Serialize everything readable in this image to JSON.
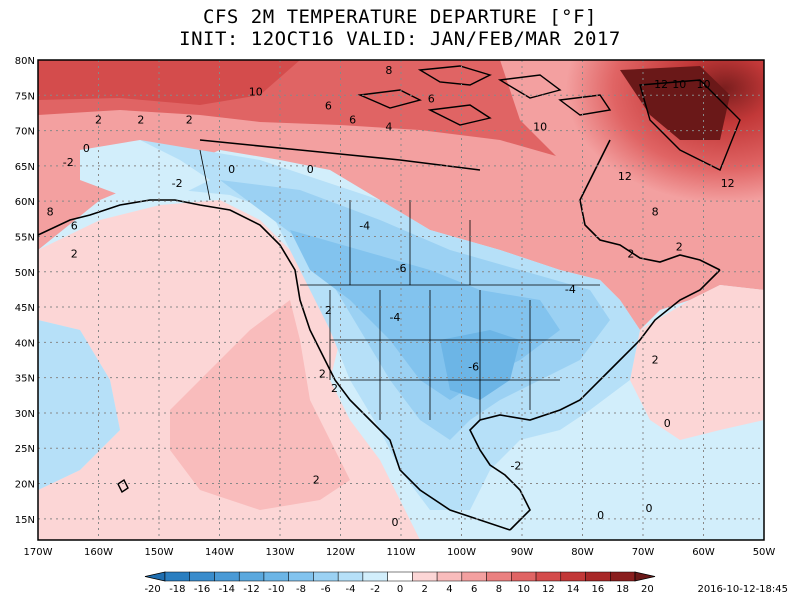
{
  "title": {
    "line1": "CFS 2M TEMPERATURE DEPARTURE [°F]",
    "line2": "INIT: 12OCT16 VALID: JAN/FEB/MAR 2017"
  },
  "timestamp": "2016-10-12-18:45",
  "lat_labels": [
    "80N",
    "75N",
    "70N",
    "65N",
    "60N",
    "55N",
    "50N",
    "45N",
    "40N",
    "35N",
    "30N",
    "25N",
    "20N",
    "15N"
  ],
  "lon_labels": [
    "170W",
    "160W",
    "150W",
    "140W",
    "130W",
    "120W",
    "110W",
    "100W",
    "90W",
    "80W",
    "70W",
    "60W",
    "50W"
  ],
  "colorbar": {
    "labels": [
      "-20",
      "-18",
      "-16",
      "-14",
      "-12",
      "-10",
      "-8",
      "-6",
      "-4",
      "-2",
      "0",
      "2",
      "4",
      "6",
      "8",
      "10",
      "12",
      "14",
      "16",
      "18",
      "20"
    ],
    "colors": [
      "#1f6eb0",
      "#2a7ec0",
      "#3a8ccc",
      "#4a9ad6",
      "#5aa8de",
      "#6cb5e6",
      "#82c3ee",
      "#9bd1f3",
      "#b6e0f8",
      "#d2eefb",
      "#ffffff",
      "#fcd6d6",
      "#f9bcbc",
      "#f3a0a0",
      "#ea8080",
      "#e06464",
      "#d44c4c",
      "#c23838",
      "#a82828",
      "#8a1e1e",
      "#6a1818"
    ]
  },
  "contour_labels": [
    {
      "text": "10",
      "lon": -134,
      "lat": 75
    },
    {
      "text": "6",
      "lon": -122,
      "lat": 73
    },
    {
      "text": "6",
      "lon": -105,
      "lat": 74
    },
    {
      "text": "8",
      "lon": -112,
      "lat": 78
    },
    {
      "text": "4",
      "lon": -112,
      "lat": 70
    },
    {
      "text": "6",
      "lon": -118,
      "lat": 71
    },
    {
      "text": "10",
      "lon": -87,
      "lat": 70
    },
    {
      "text": "12",
      "lon": -67,
      "lat": 76
    },
    {
      "text": "10",
      "lon": -64,
      "lat": 76
    },
    {
      "text": "10",
      "lon": -60,
      "lat": 76
    },
    {
      "text": "12",
      "lon": -73,
      "lat": 63
    },
    {
      "text": "12",
      "lon": -56,
      "lat": 62
    },
    {
      "text": "8",
      "lon": -68,
      "lat": 58
    },
    {
      "text": "2",
      "lon": -160,
      "lat": 71
    },
    {
      "text": "2",
      "lon": -153,
      "lat": 71
    },
    {
      "text": "2",
      "lon": -145,
      "lat": 71
    },
    {
      "text": "0",
      "lon": -162,
      "lat": 67
    },
    {
      "text": "-2",
      "lon": -165,
      "lat": 65
    },
    {
      "text": "0",
      "lon": -138,
      "lat": 64
    },
    {
      "text": "0",
      "lon": -125,
      "lat": 64
    },
    {
      "text": "-2",
      "lon": -147,
      "lat": 62
    },
    {
      "text": "8",
      "lon": -168,
      "lat": 58
    },
    {
      "text": "6",
      "lon": -164,
      "lat": 56
    },
    {
      "text": "2",
      "lon": -164,
      "lat": 52
    },
    {
      "text": "-4",
      "lon": -116,
      "lat": 56
    },
    {
      "text": "-6",
      "lon": -110,
      "lat": 50
    },
    {
      "text": "-4",
      "lon": -82,
      "lat": 47
    },
    {
      "text": "-4",
      "lon": -111,
      "lat": 43
    },
    {
      "text": "2",
      "lon": -122,
      "lat": 44
    },
    {
      "text": "-6",
      "lon": -98,
      "lat": 36
    },
    {
      "text": "2",
      "lon": -123,
      "lat": 35
    },
    {
      "text": "2",
      "lon": -121,
      "lat": 33
    },
    {
      "text": "2",
      "lon": -72,
      "lat": 52
    },
    {
      "text": "2",
      "lon": -64,
      "lat": 53
    },
    {
      "text": "2",
      "lon": -68,
      "lat": 37
    },
    {
      "text": "0",
      "lon": -66,
      "lat": 28
    },
    {
      "text": "-2",
      "lon": -91,
      "lat": 22
    },
    {
      "text": "2",
      "lon": -124,
      "lat": 20
    },
    {
      "text": "0",
      "lon": -111,
      "lat": 14
    },
    {
      "text": "0",
      "lon": -77,
      "lat": 15
    },
    {
      "text": "0",
      "lon": -69,
      "lat": 16
    }
  ]
}
